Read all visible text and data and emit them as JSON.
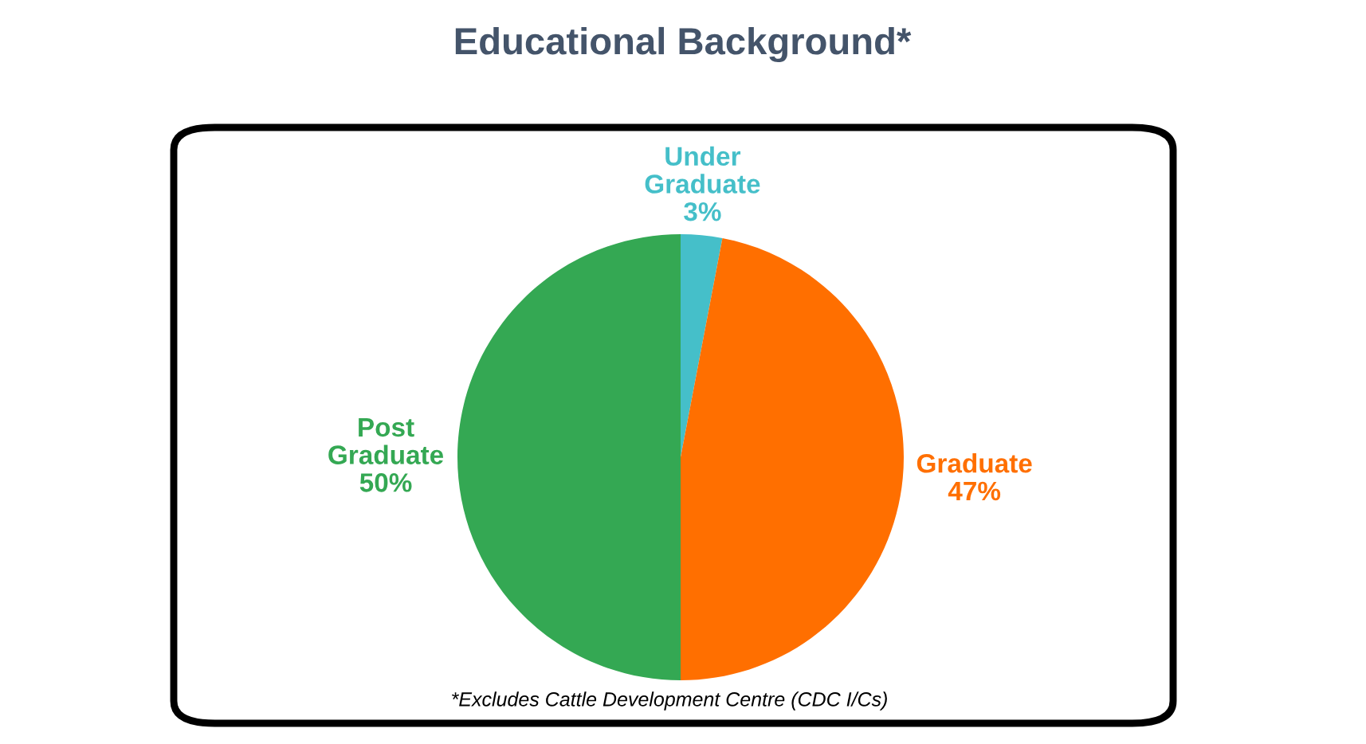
{
  "chart_data": {
    "type": "pie",
    "title": "Educational Background*",
    "categories": [
      "Under Graduate",
      "Graduate",
      "Post Graduate"
    ],
    "values": [
      3,
      47,
      50
    ],
    "colors": [
      "#45bfc9",
      "#ff6f00",
      "#34a853"
    ],
    "value_labels": [
      "3%",
      "47%",
      "50%"
    ],
    "annotations": [
      "*Excludes Cattle Development Centre (CDC I/Cs)"
    ]
  }
}
